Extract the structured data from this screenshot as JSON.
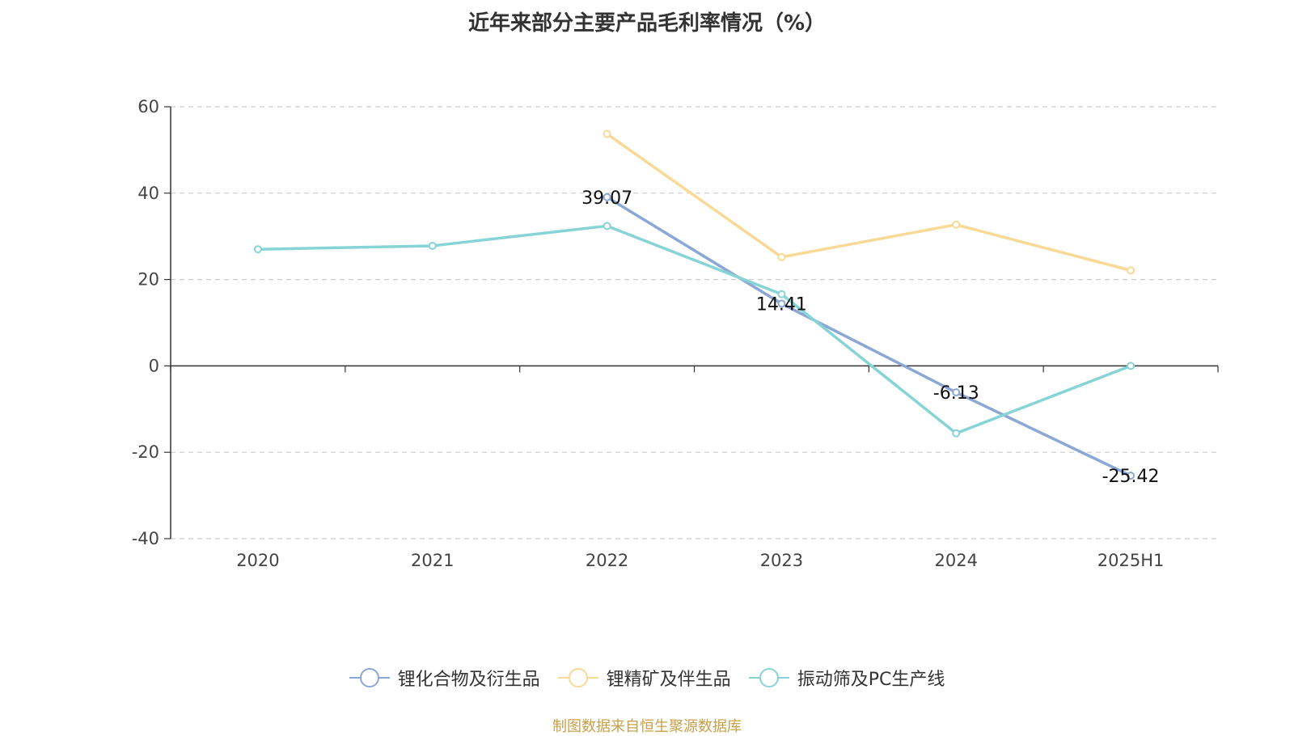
{
  "title": "近年来部分主要产品毛利率情况（%）",
  "source": "制图数据来自恒生聚源数据库",
  "chart_data": {
    "type": "line",
    "categories": [
      "2020",
      "2021",
      "2022",
      "2023",
      "2024",
      "2025H1"
    ],
    "ylim": [
      -40,
      60
    ],
    "yticks": [
      -40,
      -20,
      0,
      20,
      40,
      60
    ],
    "grid": true,
    "legend_position": "bottom",
    "series": [
      {
        "name": "锂化合物及衍生品",
        "color": "#8ba7d6",
        "values": [
          null,
          null,
          39.07,
          14.41,
          -6.13,
          -25.42
        ],
        "labels": [
          "",
          "",
          "39.07",
          "14.41",
          "-6.13",
          "-25.42"
        ]
      },
      {
        "name": "锂精矿及伴生品",
        "color": "#f9d996",
        "values": [
          null,
          null,
          53.7,
          25.2,
          32.7,
          22.1
        ],
        "labels": [
          "",
          "",
          "",
          "",
          "",
          ""
        ]
      },
      {
        "name": "振动筛及PC生产线",
        "color": "#86d4d6",
        "values": [
          27.0,
          27.8,
          32.4,
          16.6,
          -15.6,
          0.0
        ],
        "labels": [
          "",
          "",
          "",
          "",
          "",
          ""
        ]
      }
    ]
  }
}
